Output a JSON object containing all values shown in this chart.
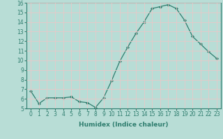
{
  "x": [
    0,
    1,
    2,
    3,
    4,
    5,
    6,
    7,
    8,
    9,
    10,
    11,
    12,
    13,
    14,
    15,
    16,
    17,
    18,
    19,
    20,
    21,
    22,
    23
  ],
  "y": [
    6.8,
    5.5,
    6.1,
    6.1,
    6.1,
    6.2,
    5.7,
    5.6,
    5.1,
    6.1,
    7.9,
    9.9,
    11.4,
    12.8,
    14.0,
    15.4,
    15.6,
    15.8,
    15.4,
    14.2,
    12.5,
    11.7,
    10.9,
    10.2
  ],
  "line_color": "#2e7d6e",
  "marker": "D",
  "marker_size": 2.0,
  "bg_color": "#b8ddd6",
  "grid_color": "#e8f8f4",
  "xlabel": "Humidex (Indice chaleur)",
  "ylim": [
    5,
    16
  ],
  "xlim": [
    -0.5,
    23.5
  ],
  "yticks": [
    5,
    6,
    7,
    8,
    9,
    10,
    11,
    12,
    13,
    14,
    15,
    16
  ],
  "xticks": [
    0,
    1,
    2,
    3,
    4,
    5,
    6,
    7,
    8,
    9,
    10,
    11,
    12,
    13,
    14,
    15,
    16,
    17,
    18,
    19,
    20,
    21,
    22,
    23
  ],
  "label_fontsize": 6.5,
  "tick_fontsize": 5.5
}
